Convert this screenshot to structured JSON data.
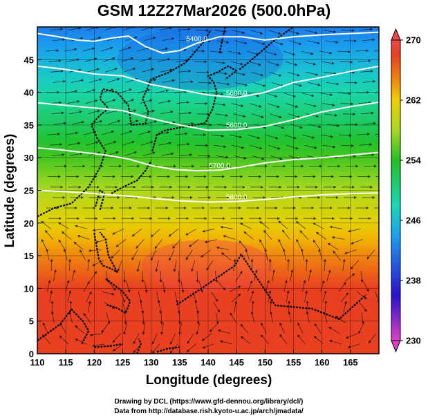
{
  "title": "GSM 12Z27Mar2026 (500.0hPa)",
  "x_axis": {
    "title": "Longitude (degrees)",
    "range": [
      110,
      170
    ],
    "ticks": [
      "110",
      "115",
      "120",
      "125",
      "130",
      "135",
      "140",
      "145",
      "150",
      "155",
      "160",
      "165"
    ]
  },
  "y_axis": {
    "title": "Latitude  (degrees)",
    "range": [
      0,
      50
    ],
    "ticks": [
      "0",
      "5",
      "10",
      "15",
      "20",
      "25",
      "30",
      "35",
      "40",
      "45"
    ]
  },
  "colorbar": {
    "min": 230,
    "max": 270,
    "labels": [
      "270",
      "262",
      "254",
      "246",
      "238",
      "230"
    ],
    "stops": [
      {
        "value": 230,
        "color": "#e040c8"
      },
      {
        "value": 236,
        "color": "#2a10d0"
      },
      {
        "value": 244,
        "color": "#1aa0f0"
      },
      {
        "value": 248,
        "color": "#18d8b8"
      },
      {
        "value": 254,
        "color": "#22c020"
      },
      {
        "value": 258,
        "color": "#a8d820"
      },
      {
        "value": 262,
        "color": "#f0d000"
      },
      {
        "value": 265,
        "color": "#f08010"
      },
      {
        "value": 268,
        "color": "#e84020"
      },
      {
        "value": 270,
        "color": "#f04848"
      }
    ]
  },
  "contours": [
    {
      "label": "5400.0",
      "points": [
        [
          110,
          49
        ],
        [
          113,
          48.6
        ],
        [
          117,
          48
        ],
        [
          120,
          47.8
        ],
        [
          123,
          48.3
        ],
        [
          126,
          48.6
        ],
        [
          129,
          47
        ],
        [
          132,
          46
        ],
        [
          135,
          46.4
        ],
        [
          138,
          47.5
        ],
        [
          142,
          48.5
        ],
        [
          146,
          48.5
        ],
        [
          150,
          48
        ],
        [
          155,
          48.5
        ],
        [
          160,
          48.8
        ],
        [
          165,
          49
        ],
        [
          170,
          49.2
        ]
      ]
    },
    {
      "label": "5600.0",
      "points": [
        [
          110,
          44
        ],
        [
          115,
          43.5
        ],
        [
          120,
          42.8
        ],
        [
          125,
          42.5
        ],
        [
          130,
          41.2
        ],
        [
          135,
          40.4
        ],
        [
          140,
          39.6
        ],
        [
          145,
          39.2
        ],
        [
          150,
          40
        ],
        [
          155,
          41.5
        ],
        [
          160,
          42.3
        ],
        [
          165,
          43.2
        ],
        [
          170,
          44
        ]
      ]
    },
    {
      "label": "5600.0",
      "points": [
        [
          110,
          38.4
        ],
        [
          115,
          38
        ],
        [
          120,
          37.6
        ],
        [
          125,
          37.2
        ],
        [
          130,
          36
        ],
        [
          135,
          35
        ],
        [
          140,
          34.2
        ],
        [
          145,
          34.3
        ],
        [
          150,
          34.8
        ],
        [
          155,
          35.8
        ],
        [
          160,
          37
        ],
        [
          165,
          37.8
        ],
        [
          170,
          38.5
        ]
      ]
    },
    {
      "label": "5700.0",
      "points": [
        [
          110,
          31.5
        ],
        [
          114,
          31.2
        ],
        [
          118,
          30.8
        ],
        [
          122,
          30.4
        ],
        [
          126,
          29.8
        ],
        [
          130,
          28.8
        ],
        [
          134,
          28.2
        ],
        [
          138,
          28
        ],
        [
          142,
          28.1
        ],
        [
          146,
          28.6
        ],
        [
          150,
          29.2
        ],
        [
          155,
          29.7
        ],
        [
          160,
          30
        ],
        [
          165,
          30.4
        ],
        [
          170,
          30.8
        ]
      ]
    },
    {
      "label": "5800.0",
      "points": [
        [
          110,
          25
        ],
        [
          115,
          24.8
        ],
        [
          120,
          24.5
        ],
        [
          125,
          24.2
        ],
        [
          130,
          23.8
        ],
        [
          135,
          23.4
        ],
        [
          140,
          23.2
        ],
        [
          145,
          23.3
        ],
        [
          150,
          23.6
        ],
        [
          155,
          24
        ],
        [
          160,
          24.3
        ],
        [
          165,
          24.5
        ],
        [
          170,
          24.6
        ]
      ]
    }
  ],
  "coastlines": [
    {
      "name": "asia-coast",
      "points": [
        [
          110,
          21
        ],
        [
          113,
          22.3
        ],
        [
          116,
          23
        ],
        [
          119,
          25.5
        ],
        [
          121,
          28.5
        ],
        [
          122,
          31
        ],
        [
          120.5,
          33
        ],
        [
          119.5,
          35
        ],
        [
          121,
          36.5
        ],
        [
          122.5,
          37.5
        ],
        [
          121,
          39
        ],
        [
          121.5,
          40.5
        ],
        [
          124,
          40
        ],
        [
          126,
          38
        ],
        [
          126.5,
          35
        ],
        [
          129,
          35.2
        ],
        [
          129.5,
          37
        ],
        [
          128.5,
          39
        ],
        [
          130,
          42
        ],
        [
          133,
          43
        ],
        [
          136,
          44.5
        ],
        [
          139,
          47.5
        ],
        [
          140.5,
          49.5
        ]
      ]
    },
    {
      "name": "japan",
      "points": [
        [
          130.2,
          31
        ],
        [
          131,
          33.5
        ],
        [
          132.5,
          34.2
        ],
        [
          135,
          34.6
        ],
        [
          137,
          34.9
        ],
        [
          139.5,
          35.3
        ],
        [
          140.8,
          37.5
        ],
        [
          141.5,
          40
        ],
        [
          141,
          41.5
        ],
        [
          140,
          42.5
        ],
        [
          141.5,
          43
        ],
        [
          143.5,
          44
        ],
        [
          145,
          43.3
        ],
        [
          143,
          42
        ]
      ]
    },
    {
      "name": "sakhalin",
      "points": [
        [
          142,
          46
        ],
        [
          142.5,
          48
        ],
        [
          143,
          50
        ]
      ]
    },
    {
      "name": "kuril-chain",
      "points": [
        [
          145.5,
          43.5
        ],
        [
          147,
          44.5
        ],
        [
          149,
          46
        ],
        [
          151,
          47.5
        ],
        [
          153,
          48.8
        ],
        [
          155,
          50
        ]
      ]
    },
    {
      "name": "ryukyu-chain",
      "points": [
        [
          123,
          24.5
        ],
        [
          125,
          25.5
        ],
        [
          127.5,
          26.5
        ],
        [
          129,
          28
        ],
        [
          130,
          29.5
        ]
      ]
    },
    {
      "name": "taiwan",
      "points": [
        [
          120.2,
          22.5
        ],
        [
          121,
          25
        ],
        [
          121.8,
          24.5
        ],
        [
          121,
          22
        ]
      ]
    },
    {
      "name": "luzon",
      "points": [
        [
          120,
          18.5
        ],
        [
          120.5,
          16
        ],
        [
          120.8,
          14.5
        ],
        [
          121.5,
          13.5
        ],
        [
          123,
          13
        ],
        [
          124,
          12.5
        ],
        [
          122.5,
          15
        ],
        [
          122,
          17.5
        ],
        [
          121,
          18.6
        ]
      ]
    },
    {
      "name": "visayas-mindanao",
      "points": [
        [
          122,
          11.5
        ],
        [
          123.5,
          10.5
        ],
        [
          125,
          9.5
        ],
        [
          126.3,
          8
        ],
        [
          125.5,
          6.2
        ],
        [
          124,
          7
        ],
        [
          122.2,
          7.5
        ]
      ]
    },
    {
      "name": "borneo",
      "points": [
        [
          110,
          2
        ],
        [
          114,
          4.5
        ],
        [
          116,
          6.8
        ],
        [
          118,
          5
        ],
        [
          119,
          3.5
        ],
        [
          117.8,
          1.5
        ]
      ]
    },
    {
      "name": "sulawesi",
      "points": [
        [
          120,
          1
        ],
        [
          123,
          1.2
        ],
        [
          125,
          1.5
        ]
      ]
    },
    {
      "name": "halmahera",
      "points": [
        [
          127.5,
          0
        ],
        [
          128.2,
          1.5
        ],
        [
          127.8,
          2.3
        ]
      ]
    },
    {
      "name": "new-guinea",
      "points": [
        [
          131,
          0.3
        ],
        [
          133,
          0.8
        ],
        [
          135,
          1
        ]
      ]
    },
    {
      "name": "micronesia",
      "points": [
        [
          134.5,
          7.5
        ],
        [
          138,
          9.5
        ],
        [
          144.7,
          13.5
        ],
        [
          145.8,
          15.2
        ],
        [
          151.8,
          7.4
        ],
        [
          158.2,
          6.9
        ],
        [
          163,
          5.3
        ],
        [
          167.7,
          9
        ]
      ]
    }
  ],
  "credits": [
    "Drawing by DCL (https://www.gfd-dennou.org/library/dcl/)",
    "Data from http://database.rish.kyoto-u.ac.jp/arch/jmadata/"
  ]
}
